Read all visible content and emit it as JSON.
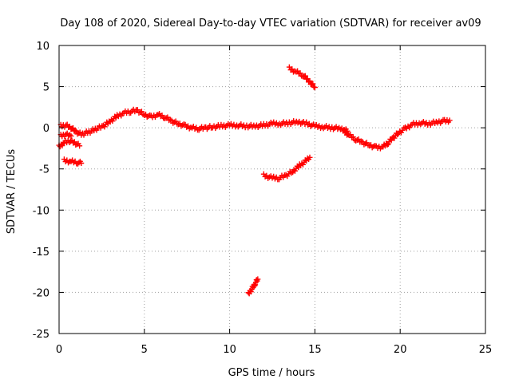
{
  "chart_data": {
    "type": "scatter",
    "title": "Day 108 of 2020, Sidereal Day-to-day VTEC variation (SDTVAR) for receiver av09",
    "xlabel": "GPS time / hours",
    "ylabel": "SDTVAR / TECUs",
    "xlim": [
      0,
      25
    ],
    "ylim": [
      -25,
      10
    ],
    "xticks": [
      0,
      5,
      10,
      15,
      20,
      25
    ],
    "xtick_labels": [
      "0",
      "5",
      "10",
      "15",
      "20",
      "25"
    ],
    "yticks": [
      10,
      5,
      0,
      -5,
      -10,
      -15,
      -20,
      -25
    ],
    "ytick_labels": [
      "10",
      "5",
      "0",
      "-5",
      "-10",
      "-15",
      "-20",
      "-25"
    ],
    "grid": true,
    "marker": "+",
    "color": "#ff0000",
    "series": [
      {
        "name": "arc-main",
        "points": [
          [
            0.1,
            0.2
          ],
          [
            0.4,
            0.3
          ],
          [
            0.7,
            0.0
          ],
          [
            1.0,
            -0.5
          ],
          [
            1.3,
            -0.8
          ],
          [
            1.6,
            -0.6
          ],
          [
            1.9,
            -0.4
          ],
          [
            2.2,
            -0.1
          ],
          [
            2.6,
            0.2
          ],
          [
            3.0,
            0.8
          ],
          [
            3.4,
            1.4
          ],
          [
            3.8,
            1.8
          ],
          [
            4.2,
            2.0
          ],
          [
            4.6,
            2.1
          ],
          [
            5.0,
            1.6
          ],
          [
            5.4,
            1.3
          ],
          [
            5.8,
            1.6
          ],
          [
            6.2,
            1.3
          ],
          [
            6.6,
            0.8
          ],
          [
            7.0,
            0.5
          ],
          [
            7.4,
            0.2
          ],
          [
            7.8,
            0.0
          ],
          [
            8.2,
            -0.1
          ],
          [
            8.6,
            0.0
          ],
          [
            9.0,
            0.1
          ],
          [
            9.5,
            0.2
          ],
          [
            10.0,
            0.3
          ],
          [
            10.5,
            0.3
          ],
          [
            11.0,
            0.2
          ],
          [
            11.5,
            0.2
          ],
          [
            12.0,
            0.3
          ],
          [
            12.5,
            0.5
          ],
          [
            13.0,
            0.5
          ],
          [
            13.5,
            0.6
          ],
          [
            14.0,
            0.7
          ],
          [
            14.5,
            0.5
          ],
          [
            15.0,
            0.2
          ],
          [
            15.5,
            0.1
          ],
          [
            16.0,
            0.0
          ],
          [
            16.5,
            -0.1
          ],
          [
            16.9,
            -0.4
          ]
        ]
      },
      {
        "name": "arc-dip",
        "points": [
          [
            16.7,
            -0.4
          ],
          [
            17.0,
            -0.9
          ],
          [
            17.4,
            -1.4
          ],
          [
            17.8,
            -1.8
          ],
          [
            18.2,
            -2.1
          ],
          [
            18.6,
            -2.4
          ],
          [
            19.0,
            -2.3
          ],
          [
            19.3,
            -1.8
          ],
          [
            19.6,
            -1.2
          ],
          [
            19.9,
            -0.6
          ],
          [
            20.3,
            -0.1
          ],
          [
            20.7,
            0.4
          ],
          [
            21.2,
            0.6
          ],
          [
            21.7,
            0.5
          ],
          [
            22.2,
            0.7
          ],
          [
            22.6,
            0.8
          ],
          [
            22.9,
            0.9
          ]
        ]
      },
      {
        "name": "arc-a",
        "points": [
          [
            0.0,
            -2.3
          ],
          [
            0.3,
            -1.8
          ],
          [
            0.6,
            -1.6
          ],
          [
            0.9,
            -1.8
          ],
          [
            1.2,
            -2.2
          ]
        ]
      },
      {
        "name": "arc-b",
        "points": [
          [
            0.1,
            -1.0
          ],
          [
            0.4,
            -0.8
          ],
          [
            0.7,
            -1.0
          ]
        ]
      },
      {
        "name": "arc-c",
        "points": [
          [
            0.3,
            -4.0
          ],
          [
            0.7,
            -4.1
          ],
          [
            1.1,
            -4.2
          ],
          [
            1.3,
            -4.3
          ]
        ]
      },
      {
        "name": "arc-up",
        "points": [
          [
            13.5,
            7.2
          ],
          [
            13.9,
            6.8
          ],
          [
            14.3,
            6.4
          ],
          [
            14.7,
            5.6
          ],
          [
            15.0,
            4.9
          ]
        ]
      },
      {
        "name": "arc-low",
        "points": [
          [
            12.0,
            -5.8
          ],
          [
            12.5,
            -6.1
          ],
          [
            12.9,
            -6.1
          ],
          [
            13.3,
            -5.8
          ],
          [
            13.7,
            -5.3
          ],
          [
            14.1,
            -4.6
          ],
          [
            14.5,
            -4.0
          ],
          [
            14.7,
            -3.6
          ]
        ]
      },
      {
        "name": "arc-deep",
        "points": [
          [
            11.1,
            -20.2
          ],
          [
            11.3,
            -19.6
          ],
          [
            11.5,
            -18.9
          ],
          [
            11.65,
            -18.4
          ]
        ]
      }
    ]
  }
}
